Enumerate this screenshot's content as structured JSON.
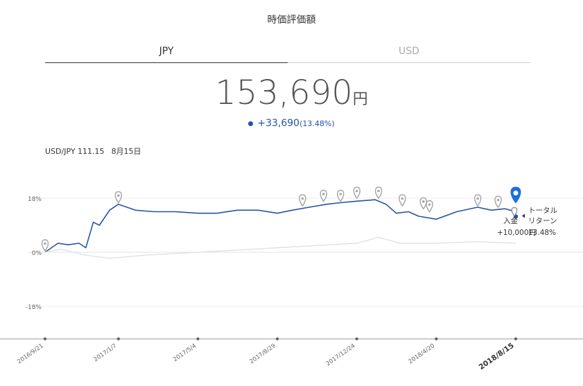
{
  "title": "時価評価額",
  "tabs": {
    "jpy": "JPY",
    "usd": "USD"
  },
  "value": {
    "amount": "153,690",
    "unit": "円"
  },
  "change": {
    "amount": "+33,690",
    "percent": "(13.48%)"
  },
  "fx": {
    "pair": "USD/JPY 111.15",
    "date": "8月15日"
  },
  "colors": {
    "main_line": "#2553a6",
    "secondary_line": "#dde2ea",
    "pin": "#a8a8a8",
    "active_pin": "#1e6fd9"
  },
  "chart_data": {
    "type": "line",
    "title": "",
    "xlabel": "",
    "ylabel": "",
    "ylim": [
      -20,
      22
    ],
    "y_ticks": [
      18,
      0,
      -18
    ],
    "y_tick_labels": [
      "18%",
      "0%",
      "-18%"
    ],
    "x_ticks": [
      "2016/9/21",
      "2017/1/7",
      "2017/5/4",
      "2017/8/29",
      "2017/12/24",
      "2018/4/20",
      "2018/8/15"
    ],
    "series": [
      {
        "name": "トータルリターン",
        "x": [
          "2016/9/21",
          "2016/10/10",
          "2016/10/25",
          "2016/11/10",
          "2016/11/20",
          "2016/12/1",
          "2016/12/10",
          "2016/12/25",
          "2017/1/7",
          "2017/2/1",
          "2017/3/1",
          "2017/4/1",
          "2017/5/4",
          "2017/6/1",
          "2017/7/1",
          "2017/8/1",
          "2017/8/29",
          "2017/9/20",
          "2017/10/15",
          "2017/11/10",
          "2017/11/30",
          "2017/12/24",
          "2018/1/20",
          "2018/2/5",
          "2018/2/20",
          "2018/3/10",
          "2018/3/25",
          "2018/4/20",
          "2018/5/20",
          "2018/6/20",
          "2018/7/10",
          "2018/7/30",
          "2018/8/15"
        ],
        "values": [
          0,
          3,
          2.5,
          3,
          1.5,
          10,
          9,
          14,
          16,
          14,
          13.5,
          13.5,
          13,
          13,
          14,
          14,
          13,
          14,
          15,
          16,
          16.5,
          17,
          17.5,
          16,
          13,
          13.5,
          12,
          11,
          13.5,
          15,
          14,
          14.5,
          13.5
        ]
      },
      {
        "name": "",
        "x": [
          "2016/9/21",
          "2016/10/15",
          "2016/11/20",
          "2016/12/25",
          "2017/2/15",
          "2017/5/4",
          "2017/8/29",
          "2017/12/24",
          "2018/1/25",
          "2018/2/25",
          "2018/4/20",
          "2018/6/20",
          "2018/8/15"
        ],
        "values": [
          0,
          1,
          -1,
          -2,
          -1,
          0,
          1.5,
          3,
          5,
          3,
          3,
          3.5,
          3
        ]
      }
    ],
    "annotations": [
      "入金",
      "+10,000円",
      "トータル",
      "リターン",
      "13.48%"
    ]
  }
}
